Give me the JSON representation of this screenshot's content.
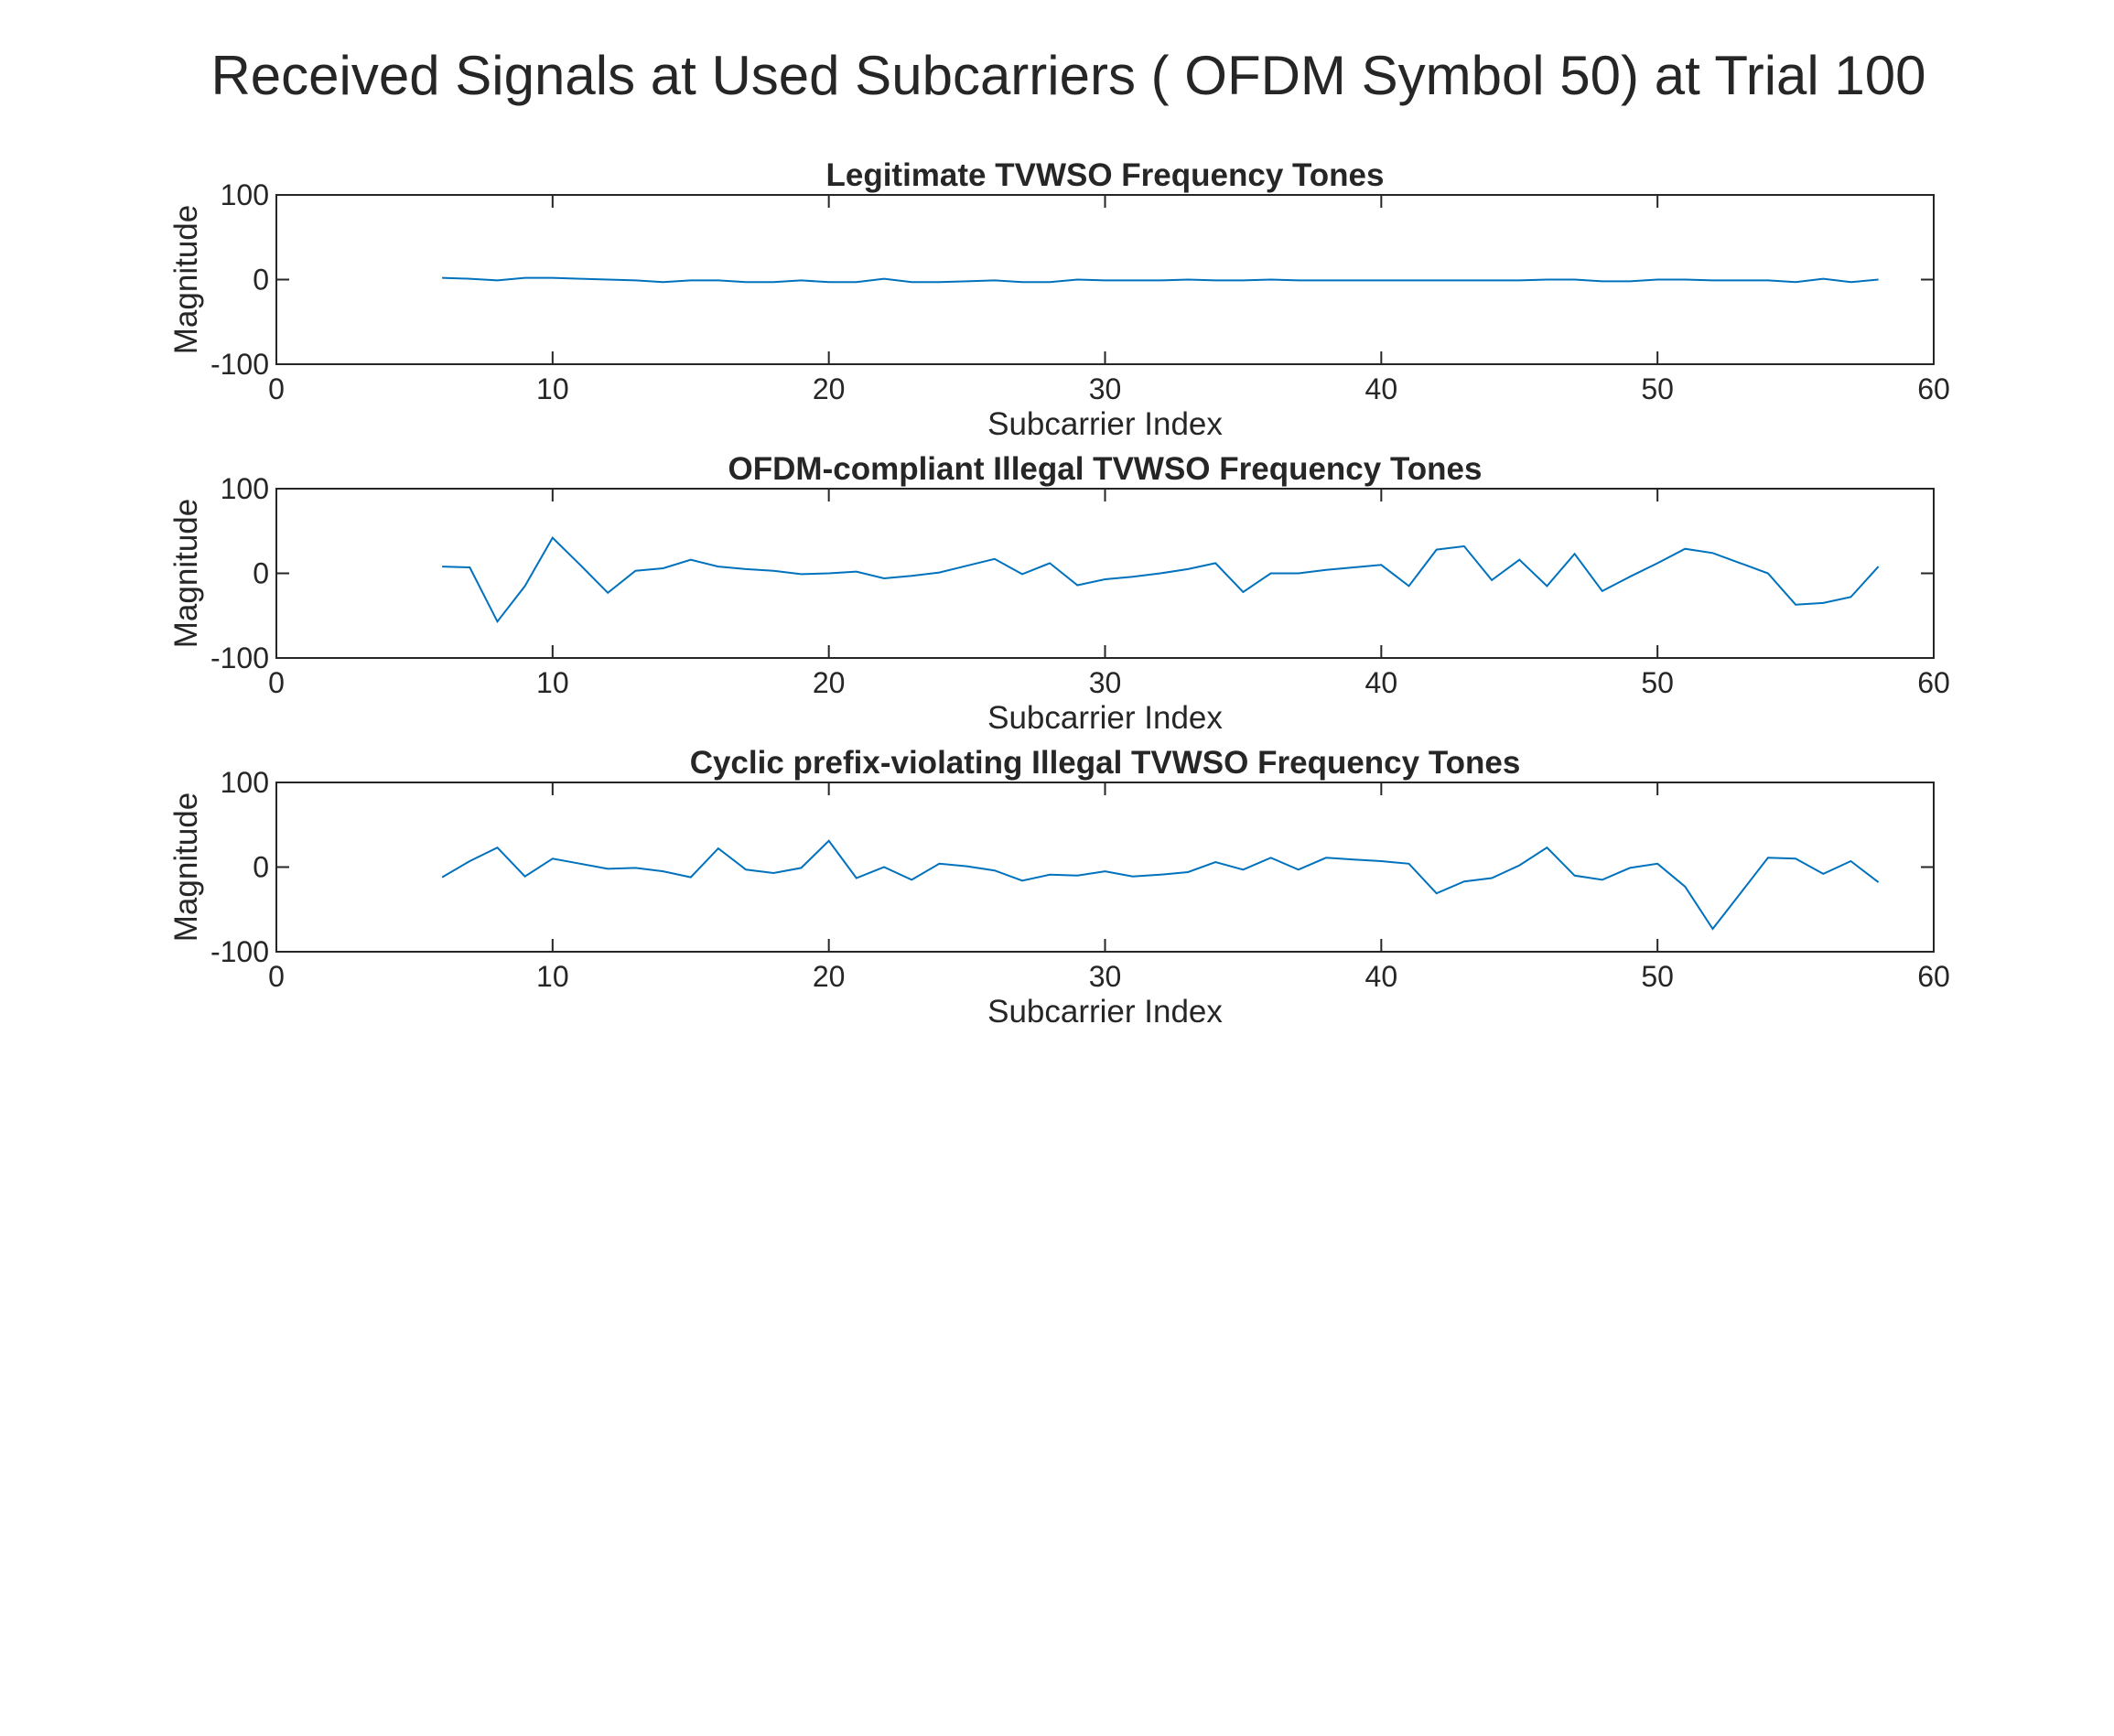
{
  "figure": {
    "title": "Received Signals at Used Subcarriers ( OFDM Symbol 50) at Trial 100",
    "line_color": "#0072BD",
    "axis_color": "#262626",
    "background": "#ffffff"
  },
  "chart_data": [
    {
      "type": "line",
      "title": "Legitimate TVWSO Frequency Tones",
      "xlabel": "Subcarrier Index",
      "ylabel": "Magnitude",
      "xlim": [
        0,
        60
      ],
      "ylim": [
        -100,
        100
      ],
      "xticks": [
        0,
        10,
        20,
        30,
        40,
        50,
        60
      ],
      "yticks": [
        -100,
        0,
        100
      ],
      "grid": false,
      "x": [
        6,
        7,
        8,
        9,
        10,
        11,
        12,
        13,
        14,
        15,
        16,
        17,
        18,
        19,
        20,
        21,
        22,
        23,
        24,
        25,
        26,
        27,
        28,
        29,
        30,
        31,
        32,
        33,
        34,
        35,
        36,
        37,
        38,
        39,
        40,
        41,
        42,
        43,
        44,
        45,
        46,
        47,
        48,
        49,
        50,
        51,
        52,
        53,
        54,
        55,
        56,
        57,
        58
      ],
      "y": [
        2,
        1,
        -1,
        2,
        2,
        1,
        0,
        -1,
        -3,
        -1,
        -1,
        -3,
        -3,
        -1,
        -3,
        -3,
        1,
        -3,
        -3,
        -2,
        -1,
        -3,
        -3,
        0,
        -1,
        -1,
        -1,
        0,
        -1,
        -1,
        0,
        -1,
        -1,
        -1,
        -1,
        -1,
        -1,
        -1,
        -1,
        -1,
        0,
        0,
        -2,
        -2,
        0,
        0,
        -1,
        -1,
        -1,
        -3,
        1,
        -3,
        0
      ]
    },
    {
      "type": "line",
      "title": "OFDM-compliant Illegal TVWSO Frequency Tones",
      "xlabel": "Subcarrier Index",
      "ylabel": "Magnitude",
      "xlim": [
        0,
        60
      ],
      "ylim": [
        -100,
        100
      ],
      "xticks": [
        0,
        10,
        20,
        30,
        40,
        50,
        60
      ],
      "yticks": [
        -100,
        0,
        100
      ],
      "grid": false,
      "x": [
        6,
        7,
        8,
        9,
        10,
        11,
        12,
        13,
        14,
        15,
        16,
        17,
        18,
        19,
        20,
        21,
        22,
        23,
        24,
        25,
        26,
        27,
        28,
        29,
        30,
        31,
        32,
        33,
        34,
        35,
        36,
        37,
        38,
        39,
        40,
        41,
        42,
        43,
        44,
        45,
        46,
        47,
        48,
        49,
        50,
        51,
        52,
        53,
        54,
        55,
        56,
        57,
        58
      ],
      "y": [
        8,
        7,
        -57,
        -15,
        42,
        10,
        -23,
        3,
        6,
        16,
        8,
        5,
        3,
        -1,
        0,
        2,
        -6,
        -3,
        1,
        9,
        17,
        -1,
        12,
        -14,
        -7,
        -4,
        0,
        5,
        12,
        -22,
        0,
        0,
        4,
        7,
        10,
        -15,
        28,
        32,
        -8,
        16,
        -15,
        23,
        -21,
        -4,
        12,
        29,
        24,
        12,
        0,
        -37,
        -35,
        -28,
        8
      ]
    },
    {
      "type": "line",
      "title": "Cyclic prefix-violating Illegal TVWSO Frequency Tones",
      "xlabel": "Subcarrier Index",
      "ylabel": "Magnitude",
      "xlim": [
        0,
        60
      ],
      "ylim": [
        -100,
        100
      ],
      "xticks": [
        0,
        10,
        20,
        30,
        40,
        50,
        60
      ],
      "yticks": [
        -100,
        0,
        100
      ],
      "grid": false,
      "x": [
        6,
        7,
        8,
        9,
        10,
        11,
        12,
        13,
        14,
        15,
        16,
        17,
        18,
        19,
        20,
        21,
        22,
        23,
        24,
        25,
        26,
        27,
        28,
        29,
        30,
        31,
        32,
        33,
        34,
        35,
        36,
        37,
        38,
        39,
        40,
        41,
        42,
        43,
        44,
        45,
        46,
        47,
        48,
        49,
        50,
        51,
        52,
        53,
        54,
        55,
        56,
        57,
        58
      ],
      "y": [
        -12,
        7,
        23,
        -11,
        10,
        4,
        -2,
        -1,
        -5,
        -12,
        22,
        -3,
        -7,
        -1,
        31,
        -13,
        0,
        -15,
        4,
        1,
        -4,
        -16,
        -9,
        -10,
        -5,
        -11,
        -9,
        -6,
        6,
        -3,
        11,
        -3,
        11,
        9,
        7,
        4,
        -31,
        -17,
        -13,
        2,
        23,
        -10,
        -15,
        -1,
        4,
        -23,
        -73,
        -31,
        11,
        10,
        -8,
        7,
        -18
      ]
    }
  ]
}
